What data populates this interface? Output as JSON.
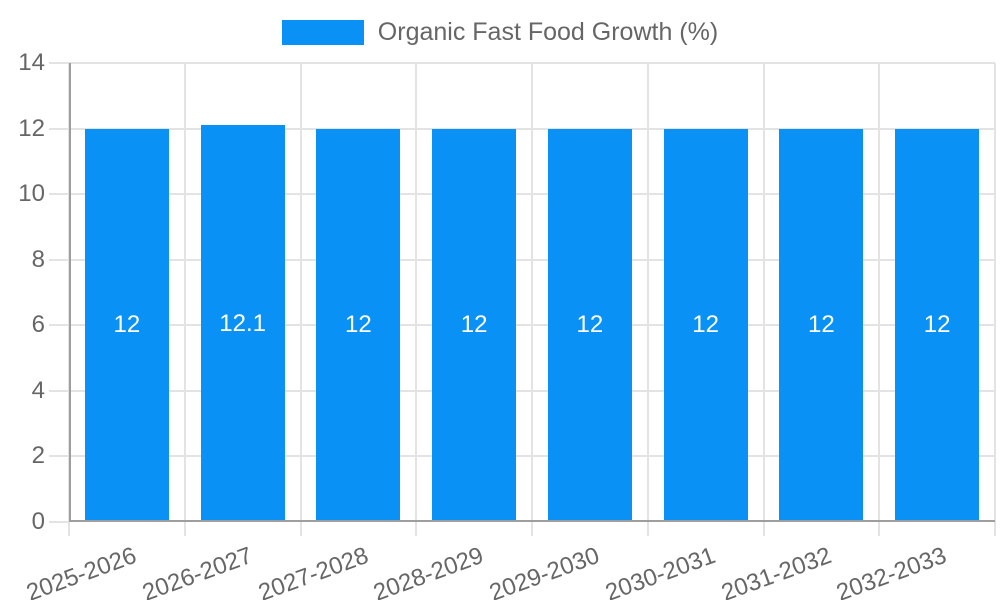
{
  "legend": {
    "label": "Organic Fast Food Growth (%)"
  },
  "colors": {
    "bar": "#0991f5",
    "grid": "#e3e3e3",
    "axis": "#9e9e9e",
    "tick_text": "#666666",
    "value_label": "#ffffff",
    "background": "#ffffff"
  },
  "chart_data": {
    "type": "bar",
    "title": "Organic Fast Food Growth (%)",
    "categories": [
      "2025-2026",
      "2026-2027",
      "2027-2028",
      "2028-2029",
      "2029-2030",
      "2030-2031",
      "2031-2032",
      "2032-2033"
    ],
    "series": [
      {
        "name": "Organic Fast Food Growth (%)",
        "values": [
          12,
          12.1,
          12,
          12,
          12,
          12,
          12,
          12
        ]
      }
    ],
    "value_labels": [
      "12",
      "12.1",
      "12",
      "12",
      "12",
      "12",
      "12",
      "12"
    ],
    "xlabel": "",
    "ylabel": "",
    "ylim": [
      0,
      14
    ],
    "yticks": [
      0,
      2,
      4,
      6,
      8,
      10,
      12,
      14
    ],
    "grid": true,
    "legend_position": "top",
    "x_label_rotation_deg": -20
  }
}
